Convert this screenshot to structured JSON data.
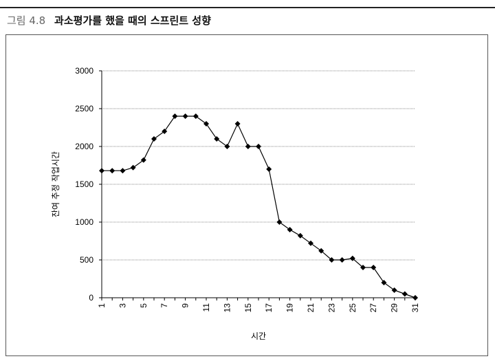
{
  "figure": {
    "number": "그림 4.8",
    "title": "과소평가를 했을 때의 스프린트 성향"
  },
  "chart_data": {
    "type": "line",
    "xlabel": "시간",
    "ylabel": "잔여 추정 작업시간",
    "x": [
      1,
      2,
      3,
      4,
      5,
      6,
      7,
      8,
      9,
      10,
      11,
      12,
      13,
      14,
      15,
      16,
      17,
      18,
      19,
      20,
      21,
      22,
      23,
      24,
      25,
      26,
      27,
      28,
      29,
      30,
      31
    ],
    "series": [
      {
        "values": [
          1680,
          1680,
          1680,
          1720,
          1820,
          2100,
          2200,
          2400,
          2400,
          2400,
          2300,
          2100,
          2000,
          2300,
          2000,
          2000,
          1700,
          1000,
          900,
          820,
          720,
          620,
          500,
          500,
          520,
          400,
          400,
          200,
          100,
          50,
          0
        ]
      }
    ],
    "ylim": [
      0,
      3000
    ],
    "yticks": [
      "0",
      "500",
      "1000",
      "1500",
      "2000",
      "2500",
      "3000"
    ],
    "xticks": [
      "1",
      "3",
      "5",
      "7",
      "9",
      "11",
      "13",
      "15",
      "17",
      "19",
      "21",
      "23",
      "25",
      "27",
      "29",
      "31"
    ],
    "grid": "horizontal",
    "legend": "none",
    "line_color": "#000000",
    "marker": "diamond"
  }
}
